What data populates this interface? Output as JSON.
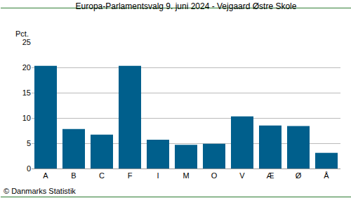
{
  "chart_data": {
    "type": "bar",
    "title": "Europa-Parlamentsvalg 9. juni 2024 - Vejgaard Østre Skole",
    "ylabel": "Pct.",
    "categories": [
      "A",
      "B",
      "C",
      "F",
      "I",
      "M",
      "O",
      "V",
      "Æ",
      "Ø",
      "Å"
    ],
    "values": [
      20.3,
      7.8,
      6.7,
      20.3,
      5.7,
      4.7,
      4.9,
      10.3,
      8.5,
      8.4,
      3.1
    ],
    "color": "#005f8c",
    "ylim": [
      0,
      25
    ],
    "yticks": [
      0,
      5,
      10,
      15,
      20,
      25
    ],
    "grid": true,
    "annotations": [
      "© Danmarks Statistik"
    ]
  }
}
